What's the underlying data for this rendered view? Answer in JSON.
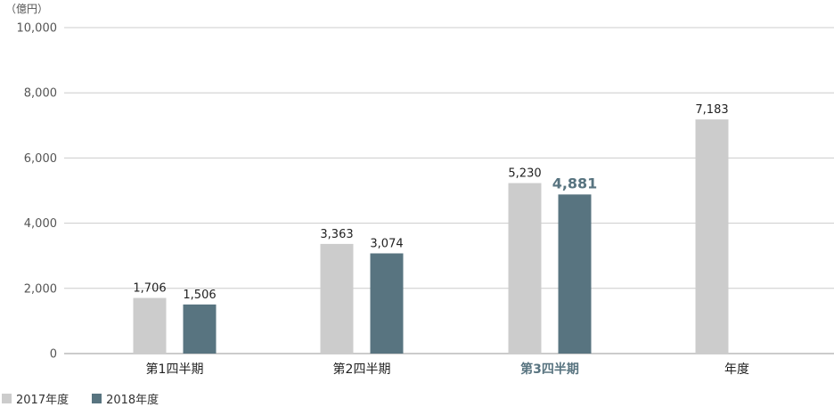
{
  "chart_data": {
    "type": "bar",
    "unit_label": "（億円）",
    "yaxis": {
      "min": 0,
      "max": 10000,
      "ticks": [
        0,
        2000,
        4000,
        6000,
        8000,
        10000
      ],
      "tick_labels": [
        "0",
        "2,000",
        "4,000",
        "6,000",
        "8,000",
        "10,000"
      ]
    },
    "grid": true,
    "categories": [
      "第1四半期",
      "第2四半期",
      "第3四半期",
      "年度"
    ],
    "highlight_category": "第3四半期",
    "series": [
      {
        "name": "2017年度",
        "color": "#cccccc",
        "values": [
          1706,
          3363,
          5230,
          7183
        ],
        "value_labels": [
          "1,706",
          "3,363",
          "5,230",
          "7,183"
        ]
      },
      {
        "name": "2018年度",
        "color": "#587480",
        "values": [
          1506,
          3074,
          4881,
          null
        ],
        "value_labels": [
          "1,506",
          "3,074",
          "4,881",
          ""
        ]
      }
    ],
    "legend_position": "bottom-left"
  }
}
